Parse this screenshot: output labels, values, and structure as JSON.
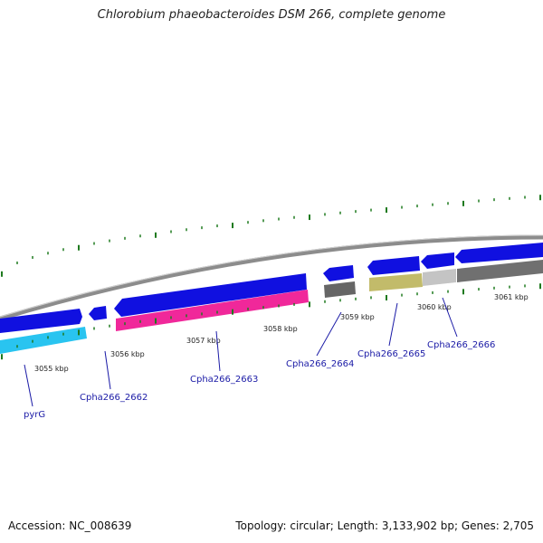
{
  "title": "Chlorobium phaeobacteroides DSM 266, complete genome",
  "accession": "Accession: NC_008639",
  "summary": "Topology: circular; Length: 3,133,902 bp; Genes: 2,705",
  "colors": {
    "backbone": "#8c8c8c",
    "forward_gene": "#1010e0",
    "reverse_gene": "#1010e0",
    "pyrG": "#29c4f0",
    "cpha2663": "#f0289a",
    "cpha2664": "#666666",
    "cpha2665": "#c2bb6a",
    "cpha2666": "#c4c4c4",
    "gray_feature": "#707070",
    "ticks": "#1f7a1f",
    "label": "#1a1aa6"
  },
  "kbp_labels": [
    "3055 kbp",
    "3056 kbp",
    "3057 kbp",
    "3058 kbp",
    "3059 kbp",
    "3060 kbp",
    "3061 kbp"
  ],
  "gene_labels": [
    "pyrG",
    "Cpha266_2662",
    "Cpha266_2663",
    "Cpha266_2664",
    "Cpha266_2665",
    "Cpha266_2666"
  ]
}
